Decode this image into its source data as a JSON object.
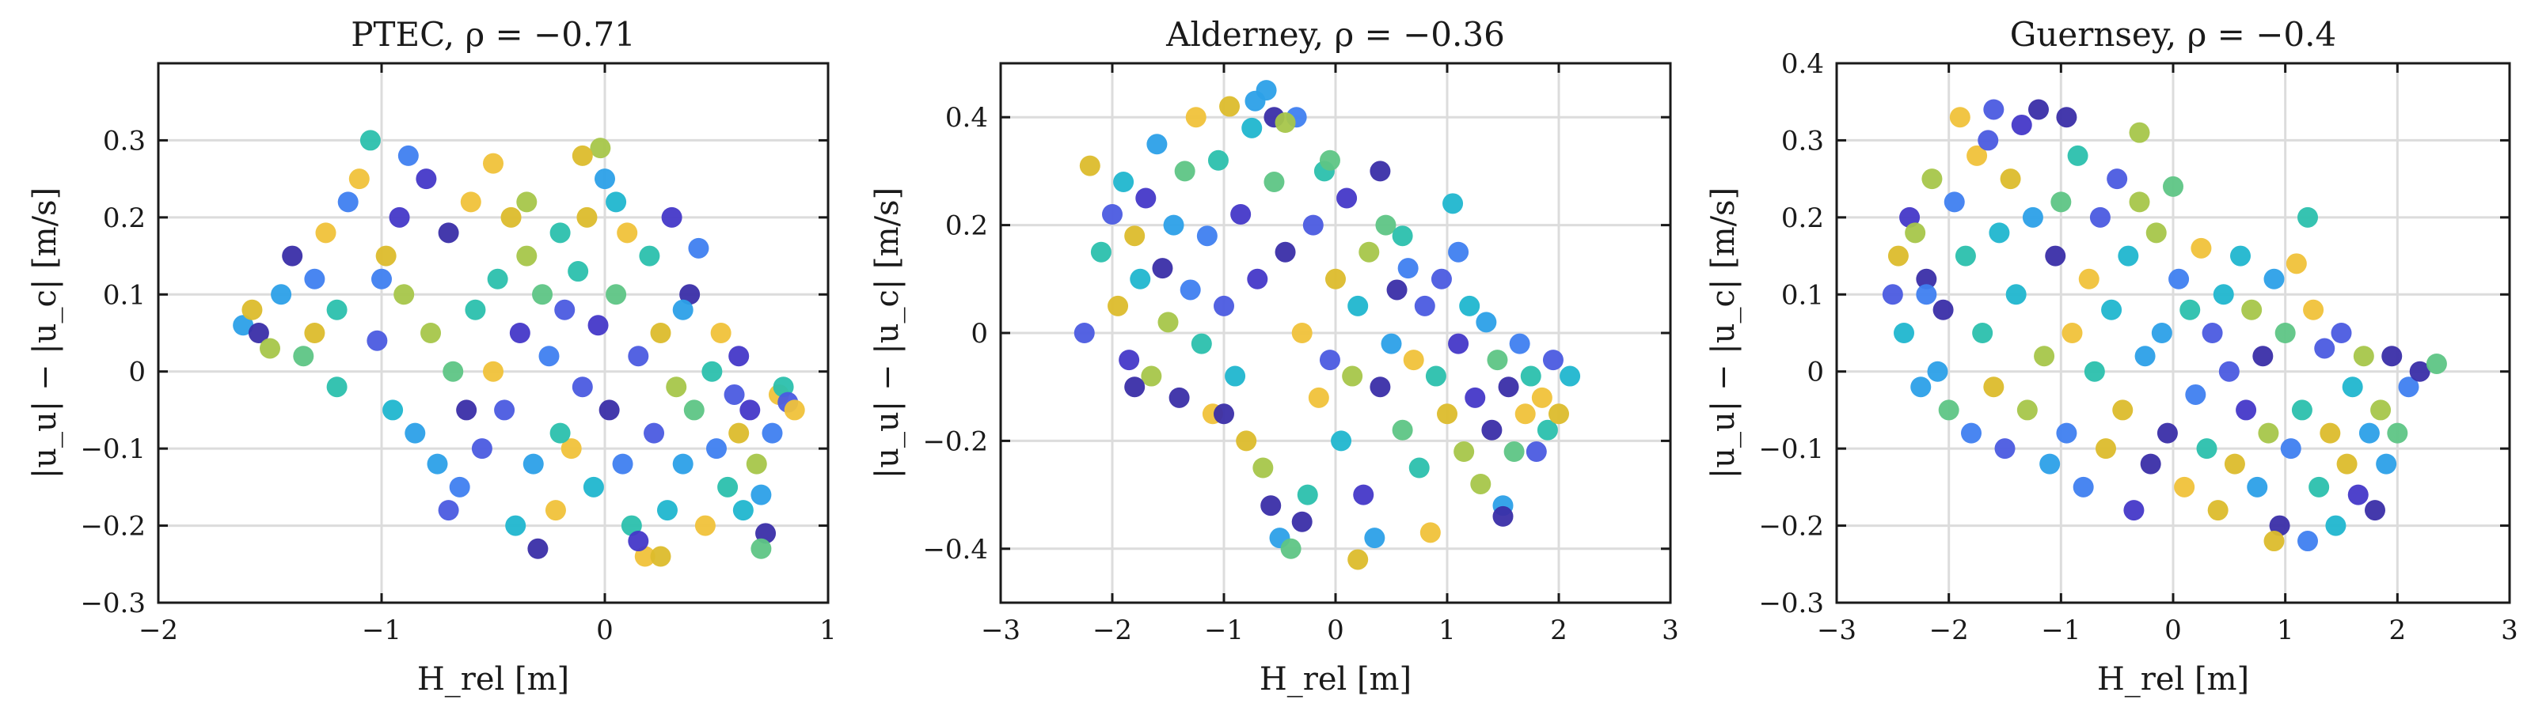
{
  "chart_data": [
    {
      "type": "scatter",
      "title": "PTEC, ρ = −0.71",
      "site": "PTEC",
      "rho": -0.71,
      "xlabel": "H_rel [m]",
      "ylabel": "|u_u| − |u_c| [m/s]",
      "xlim": [
        -2,
        1
      ],
      "ylim": [
        -0.3,
        0.4
      ],
      "xticks": [
        -2,
        -1,
        0,
        1
      ],
      "xtick_labels": [
        "−2",
        "−1",
        "0",
        "1"
      ],
      "yticks": [
        -0.3,
        -0.2,
        -0.1,
        0,
        0.1,
        0.2,
        0.3
      ],
      "ytick_labels": [
        "−0.3",
        "−0.2",
        "−0.1",
        "0",
        "0.1",
        "0.2",
        "0.3"
      ],
      "grid": true,
      "points": [
        [
          -1.62,
          0.06
        ],
        [
          -1.55,
          0.05
        ],
        [
          -1.5,
          0.03
        ],
        [
          -1.45,
          0.1
        ],
        [
          -1.4,
          0.15
        ],
        [
          -1.35,
          0.02
        ],
        [
          -1.3,
          0.12
        ],
        [
          -1.25,
          0.18
        ],
        [
          -1.2,
          0.08
        ],
        [
          -1.15,
          0.22
        ],
        [
          -1.1,
          0.25
        ],
        [
          -1.05,
          0.3
        ],
        [
          -1.02,
          0.04
        ],
        [
          -0.98,
          0.15
        ],
        [
          -0.95,
          -0.05
        ],
        [
          -0.92,
          0.2
        ],
        [
          -0.9,
          0.1
        ],
        [
          -0.85,
          -0.08
        ],
        [
          -0.8,
          0.25
        ],
        [
          -0.78,
          0.05
        ],
        [
          -0.75,
          -0.12
        ],
        [
          -0.7,
          0.18
        ],
        [
          -0.68,
          0.0
        ],
        [
          -0.65,
          -0.15
        ],
        [
          -0.6,
          0.22
        ],
        [
          -0.58,
          0.08
        ],
        [
          -0.55,
          -0.1
        ],
        [
          -0.5,
          0.27
        ],
        [
          -0.48,
          0.12
        ],
        [
          -0.45,
          -0.05
        ],
        [
          -0.42,
          0.2
        ],
        [
          -0.4,
          -0.2
        ],
        [
          -0.38,
          0.05
        ],
        [
          -0.35,
          0.15
        ],
        [
          -0.32,
          -0.12
        ],
        [
          -0.3,
          -0.23
        ],
        [
          -0.28,
          0.1
        ],
        [
          -0.25,
          0.02
        ],
        [
          -0.22,
          -0.18
        ],
        [
          -0.2,
          0.18
        ],
        [
          -0.18,
          0.08
        ],
        [
          -0.15,
          -0.1
        ],
        [
          -0.12,
          0.13
        ],
        [
          -0.1,
          -0.02
        ],
        [
          -0.08,
          0.2
        ],
        [
          -0.05,
          -0.15
        ],
        [
          -0.03,
          0.06
        ],
        [
          -0.02,
          0.29
        ],
        [
          0.0,
          0.25
        ],
        [
          0.02,
          -0.05
        ],
        [
          0.05,
          0.1
        ],
        [
          0.08,
          -0.12
        ],
        [
          0.1,
          0.18
        ],
        [
          0.12,
          -0.2
        ],
        [
          0.15,
          0.02
        ],
        [
          0.18,
          -0.24
        ],
        [
          0.2,
          0.15
        ],
        [
          0.22,
          -0.08
        ],
        [
          0.25,
          0.05
        ],
        [
          0.28,
          -0.18
        ],
        [
          0.3,
          0.2
        ],
        [
          0.32,
          -0.02
        ],
        [
          0.35,
          -0.12
        ],
        [
          0.38,
          0.1
        ],
        [
          0.4,
          -0.05
        ],
        [
          0.42,
          0.16
        ],
        [
          0.45,
          -0.2
        ],
        [
          0.48,
          0.0
        ],
        [
          0.5,
          -0.1
        ],
        [
          0.52,
          0.05
        ],
        [
          0.55,
          -0.15
        ],
        [
          0.58,
          -0.03
        ],
        [
          0.6,
          -0.08
        ],
        [
          0.62,
          -0.18
        ],
        [
          0.65,
          -0.05
        ],
        [
          0.68,
          -0.12
        ],
        [
          0.7,
          -0.16
        ],
        [
          0.72,
          -0.21
        ],
        [
          0.7,
          -0.23
        ],
        [
          0.75,
          -0.08
        ],
        [
          0.78,
          -0.03
        ],
        [
          0.8,
          -0.02
        ],
        [
          0.82,
          -0.04
        ],
        [
          0.85,
          -0.05
        ],
        [
          -1.58,
          0.08
        ],
        [
          -1.2,
          -0.02
        ],
        [
          -0.88,
          0.28
        ],
        [
          -0.62,
          -0.05
        ],
        [
          -0.35,
          0.22
        ],
        [
          0.05,
          0.22
        ],
        [
          0.15,
          -0.22
        ],
        [
          0.25,
          -0.24
        ],
        [
          -0.7,
          -0.18
        ],
        [
          -0.5,
          0.0
        ],
        [
          -0.2,
          -0.08
        ],
        [
          0.35,
          0.08
        ],
        [
          0.6,
          0.02
        ],
        [
          -1.0,
          0.12
        ],
        [
          -1.3,
          0.05
        ],
        [
          -0.1,
          0.28
        ]
      ]
    },
    {
      "type": "scatter",
      "title": "Alderney, ρ = −0.36",
      "site": "Alderney",
      "rho": -0.36,
      "xlabel": "H_rel [m]",
      "ylabel": "|u_u| − |u_c| [m/s]",
      "xlim": [
        -3,
        3
      ],
      "ylim": [
        -0.5,
        0.5
      ],
      "xticks": [
        -3,
        -2,
        -1,
        0,
        1,
        2,
        3
      ],
      "xtick_labels": [
        "−3",
        "−2",
        "−1",
        "0",
        "1",
        "2",
        "3"
      ],
      "yticks": [
        -0.4,
        -0.2,
        0,
        0.2,
        0.4
      ],
      "ytick_labels": [
        "−0.4",
        "−0.2",
        "0",
        "0.2",
        "0.4"
      ],
      "grid": true,
      "points": [
        [
          -2.25,
          0.0
        ],
        [
          -2.2,
          0.31
        ],
        [
          -2.1,
          0.15
        ],
        [
          -2.0,
          0.22
        ],
        [
          -1.95,
          0.05
        ],
        [
          -1.9,
          0.28
        ],
        [
          -1.85,
          -0.05
        ],
        [
          -1.8,
          0.18
        ],
        [
          -1.75,
          0.1
        ],
        [
          -1.7,
          0.25
        ],
        [
          -1.65,
          -0.08
        ],
        [
          -1.6,
          0.35
        ],
        [
          -1.55,
          0.12
        ],
        [
          -1.5,
          0.02
        ],
        [
          -1.45,
          0.2
        ],
        [
          -1.4,
          -0.12
        ],
        [
          -1.35,
          0.3
        ],
        [
          -1.3,
          0.08
        ],
        [
          -1.25,
          0.4
        ],
        [
          -1.2,
          -0.02
        ],
        [
          -1.15,
          0.18
        ],
        [
          -1.1,
          -0.15
        ],
        [
          -1.05,
          0.32
        ],
        [
          -1.0,
          0.05
        ],
        [
          -0.95,
          0.42
        ],
        [
          -0.9,
          -0.08
        ],
        [
          -0.85,
          0.22
        ],
        [
          -0.8,
          -0.2
        ],
        [
          -0.75,
          0.38
        ],
        [
          -0.7,
          0.1
        ],
        [
          -0.65,
          -0.25
        ],
        [
          -0.62,
          0.45
        ],
        [
          -0.58,
          -0.32
        ],
        [
          -0.55,
          0.28
        ],
        [
          -0.5,
          -0.38
        ],
        [
          -0.45,
          0.15
        ],
        [
          -0.4,
          -0.4
        ],
        [
          -0.35,
          0.4
        ],
        [
          -0.3,
          0.0
        ],
        [
          -0.25,
          -0.3
        ],
        [
          -0.2,
          0.2
        ],
        [
          -0.15,
          -0.12
        ],
        [
          -0.1,
          0.3
        ],
        [
          -0.05,
          -0.05
        ],
        [
          0.0,
          0.1
        ],
        [
          0.05,
          -0.2
        ],
        [
          0.1,
          0.25
        ],
        [
          0.15,
          -0.08
        ],
        [
          0.2,
          0.05
        ],
        [
          0.25,
          -0.3
        ],
        [
          0.3,
          0.15
        ],
        [
          0.35,
          -0.38
        ],
        [
          0.4,
          -0.1
        ],
        [
          0.45,
          0.2
        ],
        [
          0.5,
          -0.02
        ],
        [
          0.55,
          0.08
        ],
        [
          0.6,
          -0.18
        ],
        [
          0.65,
          0.12
        ],
        [
          0.7,
          -0.05
        ],
        [
          0.75,
          -0.25
        ],
        [
          0.8,
          0.05
        ],
        [
          0.85,
          -0.37
        ],
        [
          0.9,
          -0.08
        ],
        [
          0.95,
          0.1
        ],
        [
          1.0,
          -0.15
        ],
        [
          1.05,
          0.24
        ],
        [
          1.1,
          -0.02
        ],
        [
          1.15,
          -0.22
        ],
        [
          1.2,
          0.05
        ],
        [
          1.25,
          -0.12
        ],
        [
          1.3,
          -0.28
        ],
        [
          1.35,
          0.02
        ],
        [
          1.4,
          -0.18
        ],
        [
          1.45,
          -0.05
        ],
        [
          1.5,
          -0.32
        ],
        [
          1.55,
          -0.1
        ],
        [
          1.6,
          -0.22
        ],
        [
          1.65,
          -0.02
        ],
        [
          1.7,
          -0.15
        ],
        [
          1.75,
          -0.08
        ],
        [
          1.8,
          -0.22
        ],
        [
          1.85,
          -0.12
        ],
        [
          1.9,
          -0.18
        ],
        [
          1.95,
          -0.05
        ],
        [
          2.0,
          -0.15
        ],
        [
          2.1,
          -0.08
        ],
        [
          -0.72,
          0.43
        ],
        [
          -0.55,
          0.4
        ],
        [
          -0.45,
          0.39
        ],
        [
          -1.8,
          -0.1
        ],
        [
          -0.3,
          -0.35
        ],
        [
          0.2,
          -0.42
        ],
        [
          0.6,
          0.18
        ],
        [
          1.1,
          0.15
        ],
        [
          -0.05,
          0.32
        ],
        [
          -1.0,
          -0.15
        ],
        [
          0.4,
          0.3
        ],
        [
          1.5,
          -0.34
        ]
      ]
    },
    {
      "type": "scatter",
      "title": "Guernsey, ρ = −0.4",
      "site": "Guernsey",
      "rho": -0.4,
      "xlabel": "H_rel [m]",
      "ylabel": "|u_u| − |u_c| [m/s]",
      "xlim": [
        -3,
        3
      ],
      "ylim": [
        -0.3,
        0.4
      ],
      "xticks": [
        -3,
        -2,
        -1,
        0,
        1,
        2,
        3
      ],
      "xtick_labels": [
        "−3",
        "−2",
        "−1",
        "0",
        "1",
        "2",
        "3"
      ],
      "yticks": [
        -0.3,
        -0.2,
        -0.1,
        0,
        0.1,
        0.2,
        0.3,
        0.4
      ],
      "ytick_labels": [
        "−0.3",
        "−0.2",
        "−0.1",
        "0",
        "0.1",
        "0.2",
        "0.3",
        "0.4"
      ],
      "grid": true,
      "points": [
        [
          -2.5,
          0.1
        ],
        [
          -2.45,
          0.15
        ],
        [
          -2.4,
          0.05
        ],
        [
          -2.35,
          0.2
        ],
        [
          -2.3,
          0.18
        ],
        [
          -2.25,
          -0.02
        ],
        [
          -2.2,
          0.12
        ],
        [
          -2.15,
          0.25
        ],
        [
          -2.1,
          0.0
        ],
        [
          -2.05,
          0.08
        ],
        [
          -2.0,
          -0.05
        ],
        [
          -1.95,
          0.22
        ],
        [
          -1.9,
          0.33
        ],
        [
          -1.85,
          0.15
        ],
        [
          -1.8,
          -0.08
        ],
        [
          -1.75,
          0.28
        ],
        [
          -1.7,
          0.05
        ],
        [
          -1.65,
          0.3
        ],
        [
          -1.6,
          -0.02
        ],
        [
          -1.55,
          0.18
        ],
        [
          -1.5,
          -0.1
        ],
        [
          -1.45,
          0.25
        ],
        [
          -1.4,
          0.1
        ],
        [
          -1.35,
          0.32
        ],
        [
          -1.3,
          -0.05
        ],
        [
          -1.25,
          0.2
        ],
        [
          -1.2,
          0.34
        ],
        [
          -1.15,
          0.02
        ],
        [
          -1.1,
          -0.12
        ],
        [
          -1.05,
          0.15
        ],
        [
          -1.0,
          0.22
        ],
        [
          -0.95,
          -0.08
        ],
        [
          -0.9,
          0.05
        ],
        [
          -0.85,
          0.28
        ],
        [
          -0.8,
          -0.15
        ],
        [
          -0.75,
          0.12
        ],
        [
          -0.7,
          0.0
        ],
        [
          -0.65,
          0.2
        ],
        [
          -0.6,
          -0.1
        ],
        [
          -0.55,
          0.08
        ],
        [
          -0.5,
          0.25
        ],
        [
          -0.45,
          -0.05
        ],
        [
          -0.4,
          0.15
        ],
        [
          -0.35,
          -0.18
        ],
        [
          -0.3,
          0.31
        ],
        [
          -0.25,
          0.02
        ],
        [
          -0.2,
          -0.12
        ],
        [
          -0.15,
          0.18
        ],
        [
          -0.1,
          0.05
        ],
        [
          -0.05,
          -0.08
        ],
        [
          0.0,
          0.24
        ],
        [
          0.05,
          0.12
        ],
        [
          0.1,
          -0.15
        ],
        [
          0.15,
          0.08
        ],
        [
          0.2,
          -0.03
        ],
        [
          0.25,
          0.16
        ],
        [
          0.3,
          -0.1
        ],
        [
          0.35,
          0.05
        ],
        [
          0.4,
          -0.18
        ],
        [
          0.45,
          0.1
        ],
        [
          0.5,
          0.0
        ],
        [
          0.55,
          -0.12
        ],
        [
          0.6,
          0.15
        ],
        [
          0.65,
          -0.05
        ],
        [
          0.7,
          0.08
        ],
        [
          0.75,
          -0.15
        ],
        [
          0.8,
          0.02
        ],
        [
          0.85,
          -0.08
        ],
        [
          0.9,
          0.12
        ],
        [
          0.95,
          -0.2
        ],
        [
          1.0,
          0.05
        ],
        [
          1.05,
          -0.1
        ],
        [
          1.1,
          0.14
        ],
        [
          1.15,
          -0.05
        ],
        [
          1.2,
          -0.22
        ],
        [
          1.25,
          0.08
        ],
        [
          1.3,
          -0.15
        ],
        [
          1.35,
          0.03
        ],
        [
          1.4,
          -0.08
        ],
        [
          1.45,
          -0.2
        ],
        [
          1.5,
          0.05
        ],
        [
          1.55,
          -0.12
        ],
        [
          1.6,
          -0.02
        ],
        [
          1.65,
          -0.16
        ],
        [
          1.7,
          0.02
        ],
        [
          1.75,
          -0.08
        ],
        [
          1.8,
          -0.18
        ],
        [
          1.85,
          -0.05
        ],
        [
          1.9,
          -0.12
        ],
        [
          1.95,
          0.02
        ],
        [
          2.0,
          -0.08
        ],
        [
          2.1,
          -0.02
        ],
        [
          2.2,
          0.0
        ],
        [
          2.35,
          0.01
        ],
        [
          -1.6,
          0.34
        ],
        [
          -0.95,
          0.33
        ],
        [
          -2.2,
          0.1
        ],
        [
          0.9,
          -0.22
        ],
        [
          1.2,
          0.2
        ],
        [
          -0.3,
          0.22
        ]
      ]
    }
  ]
}
